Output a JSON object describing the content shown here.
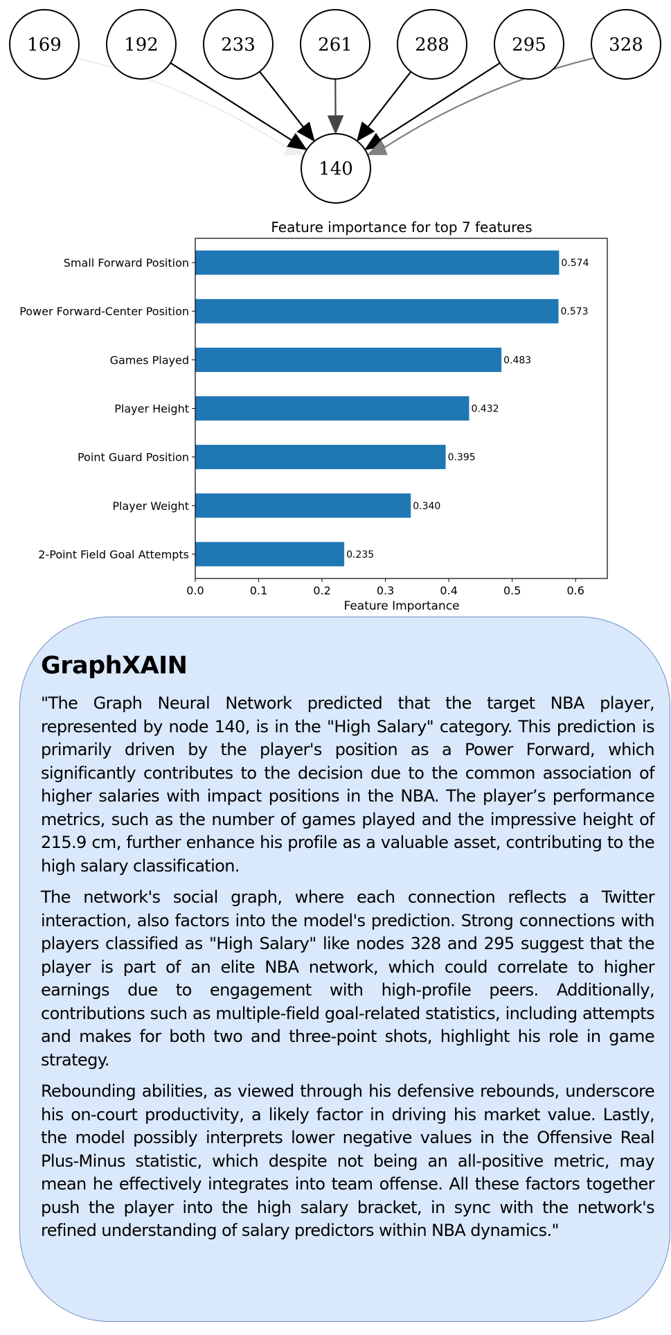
{
  "graph": {
    "target_node": "140",
    "source_nodes": [
      {
        "label": "169",
        "edge_color": "#eeeeee"
      },
      {
        "label": "192",
        "edge_color": "#000000"
      },
      {
        "label": "233",
        "edge_color": "#000000"
      },
      {
        "label": "261",
        "edge_color": "#444444"
      },
      {
        "label": "288",
        "edge_color": "#000000"
      },
      {
        "label": "295",
        "edge_color": "#000000"
      },
      {
        "label": "328",
        "edge_color": "#808080"
      }
    ]
  },
  "chart_data": {
    "type": "bar",
    "orientation": "horizontal",
    "title": "Feature importance for top 7 features",
    "xlabel": "Feature Importance",
    "xlim": [
      0,
      0.65
    ],
    "xticks": [
      "0.0",
      "0.1",
      "0.2",
      "0.3",
      "0.4",
      "0.5",
      "0.6"
    ],
    "bar_color": "#1f77b4",
    "categories": [
      "Small Forward Position",
      "Power Forward-Center Position",
      "Games Played",
      "Player Height",
      "Point Guard Position",
      "Player Weight",
      "2-Point Field Goal Attempts"
    ],
    "values": [
      0.574,
      0.573,
      0.483,
      0.432,
      0.395,
      0.34,
      0.235
    ],
    "value_labels": [
      "0.574",
      "0.573",
      "0.483",
      "0.432",
      "0.395",
      "0.340",
      "0.235"
    ]
  },
  "explanation": {
    "title": "GraphXAIN",
    "paragraphs": [
      "\"The Graph Neural Network predicted that the target NBA player, represented by node 140, is in the \"High Salary\" category. This prediction is primarily driven by the player's position as a Power Forward, which significantly contributes to the decision due to the common association of higher salaries with impact positions in the NBA. The player’s performance metrics, such as the number of games played and the impressive height of 215.9 cm, further enhance his profile as a valuable asset, contributing to the high salary classification.",
      "The network's social graph, where each connection reflects a Twitter interaction, also factors into the model's prediction. Strong connections with players classified as \"High Salary\" like nodes 328 and 295 suggest that the player is part of an elite NBA network, which could correlate to higher earnings due to engagement with high-profile peers. Additionally, contributions such as multiple-field goal-related statistics, including attempts and makes for both two and three-point shots, highlight his role in game strategy.",
      "Rebounding abilities, as viewed through his defensive rebounds, underscore his on-court productivity, a likely factor in driving his market value. Lastly, the model possibly interprets lower negative values in the Offensive Real Plus-Minus statistic, which despite not being an all-positive metric, may mean he effectively integrates into team offense. All these factors together push the player into the high salary bracket, in sync with the network's refined understanding of salary predictors within NBA dynamics.\""
    ]
  }
}
